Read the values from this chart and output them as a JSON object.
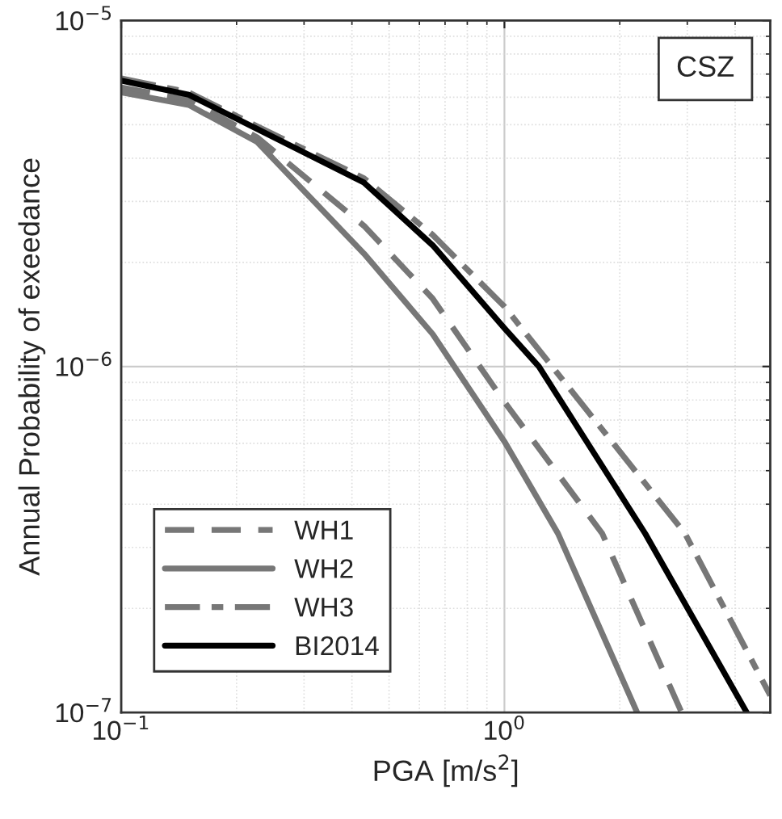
{
  "chart_data": {
    "type": "line",
    "xlabel": "PGA [m/s$^{2}$]",
    "ylabel": "Annual Probability of exeedance",
    "log": "xy",
    "grid": true,
    "legend": "bottom left",
    "xlim": [
      0.1,
      4.94
    ],
    "ylim": [
      1e-07,
      1e-05
    ],
    "xticks": [
      {
        "value": 0.1,
        "label": "10$^{−1}$"
      },
      {
        "value": 1,
        "label": "10$^{0}$"
      }
    ],
    "yticks": [
      {
        "value": 1e-07,
        "label": "10$^{−7}$"
      },
      {
        "value": 1e-06,
        "label": "10$^{−6}$"
      },
      {
        "value": 1e-05,
        "label": "10$^{−5}$"
      }
    ],
    "annotations": [
      "CSZ"
    ],
    "series": [
      {
        "name": "WH1",
        "color": "#777777",
        "line_style": "dashed",
        "x": [
          0.1,
          0.15,
          0.226,
          0.43,
          0.65,
          1,
          1.8,
          2.9
        ],
        "values": [
          6.4e-06,
          5.9e-06,
          4.6e-06,
          2.55e-06,
          1.57e-06,
          7.9e-07,
          3.29e-07,
          1e-07
        ]
      },
      {
        "name": "WH2",
        "color": "#777777",
        "line_style": "solid",
        "x": [
          0.1,
          0.15,
          0.226,
          0.43,
          0.65,
          1,
          1.38,
          2.22
        ],
        "values": [
          6.2e-06,
          5.7e-06,
          4.46e-06,
          2.12e-06,
          1.24e-06,
          6.07e-07,
          3.29e-07,
          1e-07
        ]
      },
      {
        "name": "WH3",
        "color": "#777777",
        "line_style": "dashdot",
        "x": [
          0.1,
          0.15,
          0.226,
          0.43,
          0.65,
          1,
          2.96,
          4.94
        ],
        "values": [
          6.8e-06,
          6.2e-06,
          4.95e-06,
          3.5e-06,
          2.4e-06,
          1.49e-06,
          3.29e-07,
          1.12e-07
        ]
      },
      {
        "name": "BI2014",
        "color": "#000000",
        "line_style": "solid",
        "x": [
          0.1,
          0.15,
          0.226,
          0.43,
          0.65,
          1,
          1.23,
          2.33,
          4.29
        ],
        "values": [
          6.7e-06,
          6.1e-06,
          4.86e-06,
          3.4e-06,
          2.24e-06,
          1.29e-06,
          1e-06,
          3.29e-07,
          1e-07
        ]
      }
    ]
  }
}
